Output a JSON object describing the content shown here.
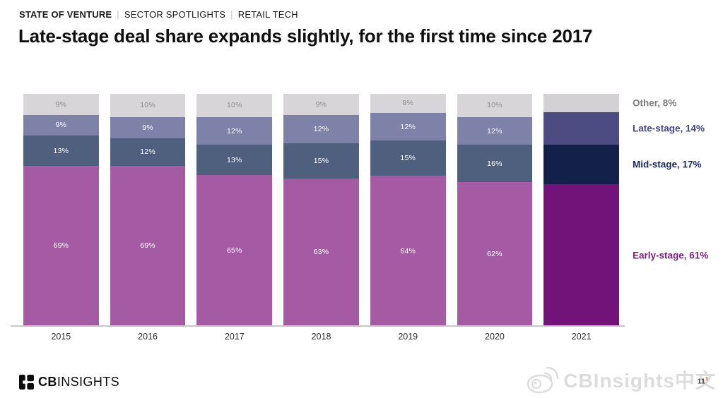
{
  "header": {
    "breadcrumb": [
      {
        "label": "STATE OF VENTURE"
      },
      {
        "label": "SECTOR SPOTLIGHTS"
      },
      {
        "label": "RETAIL TECH"
      }
    ],
    "separator": "|",
    "title": "Late-stage deal share expands slightly, for the first time since 2017"
  },
  "chart_data": {
    "type": "bar",
    "stacked": true,
    "percent_stack": true,
    "unit": "%",
    "categories": [
      "2015",
      "2016",
      "2017",
      "2018",
      "2019",
      "2020",
      "2021"
    ],
    "series": [
      {
        "name": "Other",
        "values": [
          9,
          10,
          10,
          9,
          8,
          10,
          8
        ],
        "color": "#d8d5d8",
        "highlight_color": "#d3d1d4",
        "label_color": "#8b8b8b"
      },
      {
        "name": "Late-stage",
        "values": [
          9,
          9,
          12,
          12,
          12,
          12,
          14
        ],
        "color": "#7e81a8",
        "highlight_color": "#4c4b82",
        "label_color": "#ffffff"
      },
      {
        "name": "Mid-stage",
        "values": [
          13,
          12,
          13,
          15,
          15,
          16,
          17
        ],
        "color": "#4f5f7e",
        "highlight_color": "#13204a",
        "label_color": "#ffffff"
      },
      {
        "name": "Early-stage",
        "values": [
          69,
          69,
          65,
          63,
          64,
          62,
          61
        ],
        "color": "#a55ba3",
        "highlight_color": "#711378",
        "label_color": "#ffffff"
      }
    ],
    "highlight_category": "2021",
    "legend_position": "right",
    "legend": [
      {
        "label": "Other, 8%",
        "color": "#7f7f7f"
      },
      {
        "label": "Late-stage, 14%",
        "color": "#45458d"
      },
      {
        "label": "Mid-stage, 17%",
        "color": "#1c2b5e"
      },
      {
        "label": "Early-stage, 61%",
        "color": "#7d1d82"
      }
    ],
    "grid": false
  },
  "footer": {
    "logo_cb": "CB",
    "logo_insights": "INSIGHTS",
    "watermark_text": "CBInsights中文",
    "page_number": "11",
    "footnote_mark": "1"
  }
}
